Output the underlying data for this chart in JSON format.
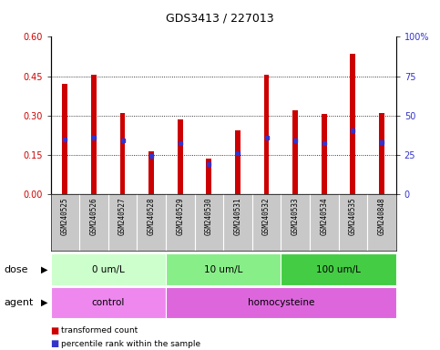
{
  "title": "GDS3413 / 227013",
  "samples": [
    "GSM240525",
    "GSM240526",
    "GSM240527",
    "GSM240528",
    "GSM240529",
    "GSM240530",
    "GSM240531",
    "GSM240532",
    "GSM240533",
    "GSM240534",
    "GSM240535",
    "GSM240848"
  ],
  "bar_values": [
    0.42,
    0.455,
    0.31,
    0.165,
    0.285,
    0.135,
    0.245,
    0.455,
    0.32,
    0.305,
    0.535,
    0.31
  ],
  "blue_marker_values": [
    0.21,
    0.215,
    0.205,
    0.145,
    0.195,
    0.115,
    0.155,
    0.215,
    0.205,
    0.195,
    0.245,
    0.2
  ],
  "ylim_left": [
    0,
    0.6
  ],
  "ylim_right": [
    0,
    100
  ],
  "yticks_left": [
    0,
    0.15,
    0.3,
    0.45,
    0.6
  ],
  "yticks_right": [
    0,
    25,
    50,
    75,
    100
  ],
  "bar_color": "#CC0000",
  "blue_color": "#3333CC",
  "dose_groups": [
    {
      "label": "0 um/L",
      "start": 0,
      "end": 4,
      "color": "#CCFFCC"
    },
    {
      "label": "10 um/L",
      "start": 4,
      "end": 8,
      "color": "#88EE88"
    },
    {
      "label": "100 um/L",
      "start": 8,
      "end": 12,
      "color": "#44CC44"
    }
  ],
  "agent_groups": [
    {
      "label": "control",
      "start": 0,
      "end": 4,
      "color": "#EE88EE"
    },
    {
      "label": "homocysteine",
      "start": 4,
      "end": 12,
      "color": "#DD66DD"
    }
  ],
  "legend_red": "transformed count",
  "legend_blue": "percentile rank within the sample",
  "dose_label": "dose",
  "agent_label": "agent",
  "xtick_bg": "#C8C8C8",
  "bar_width": 0.18
}
